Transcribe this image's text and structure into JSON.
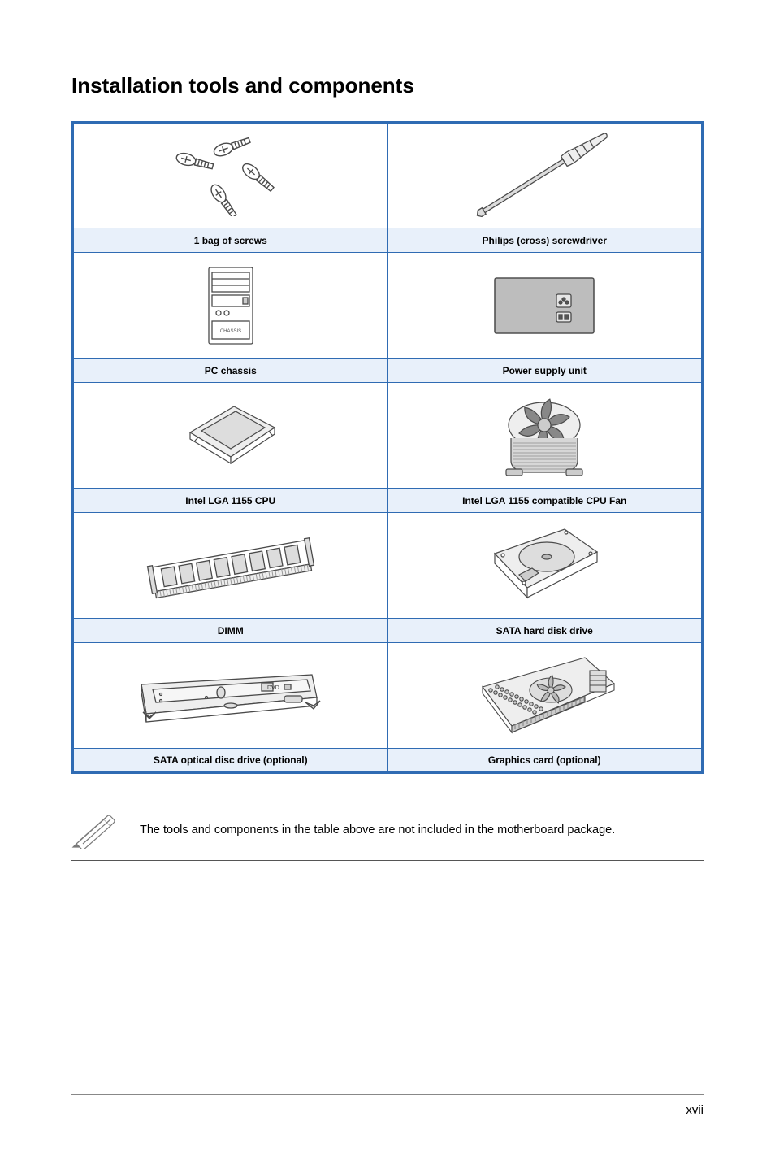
{
  "title": "Installation tools and components",
  "table": {
    "border_color": "#2f6bb3",
    "label_bg": "#e8f0fa",
    "rows": [
      {
        "left": {
          "label": "1 bag of screws",
          "icon": "screws"
        },
        "right": {
          "label": "Philips (cross) screwdriver",
          "icon": "screwdriver"
        }
      },
      {
        "left": {
          "label": "PC chassis",
          "icon": "chassis"
        },
        "right": {
          "label": "Power supply unit",
          "icon": "psu"
        }
      },
      {
        "left": {
          "label": "Intel LGA 1155 CPU",
          "icon": "cpu"
        },
        "right": {
          "label": "Intel LGA 1155 compatible CPU Fan",
          "icon": "cpufan"
        }
      },
      {
        "left": {
          "label": "DIMM",
          "icon": "dimm"
        },
        "right": {
          "label": "SATA hard disk drive",
          "icon": "hdd"
        }
      },
      {
        "left": {
          "label": "SATA optical disc drive (optional)",
          "icon": "optical"
        },
        "right": {
          "label": "Graphics card (optional)",
          "icon": "gpu"
        }
      }
    ]
  },
  "note": "The tools and components in the table above are not included in the motherboard package.",
  "page_number": "xvii"
}
